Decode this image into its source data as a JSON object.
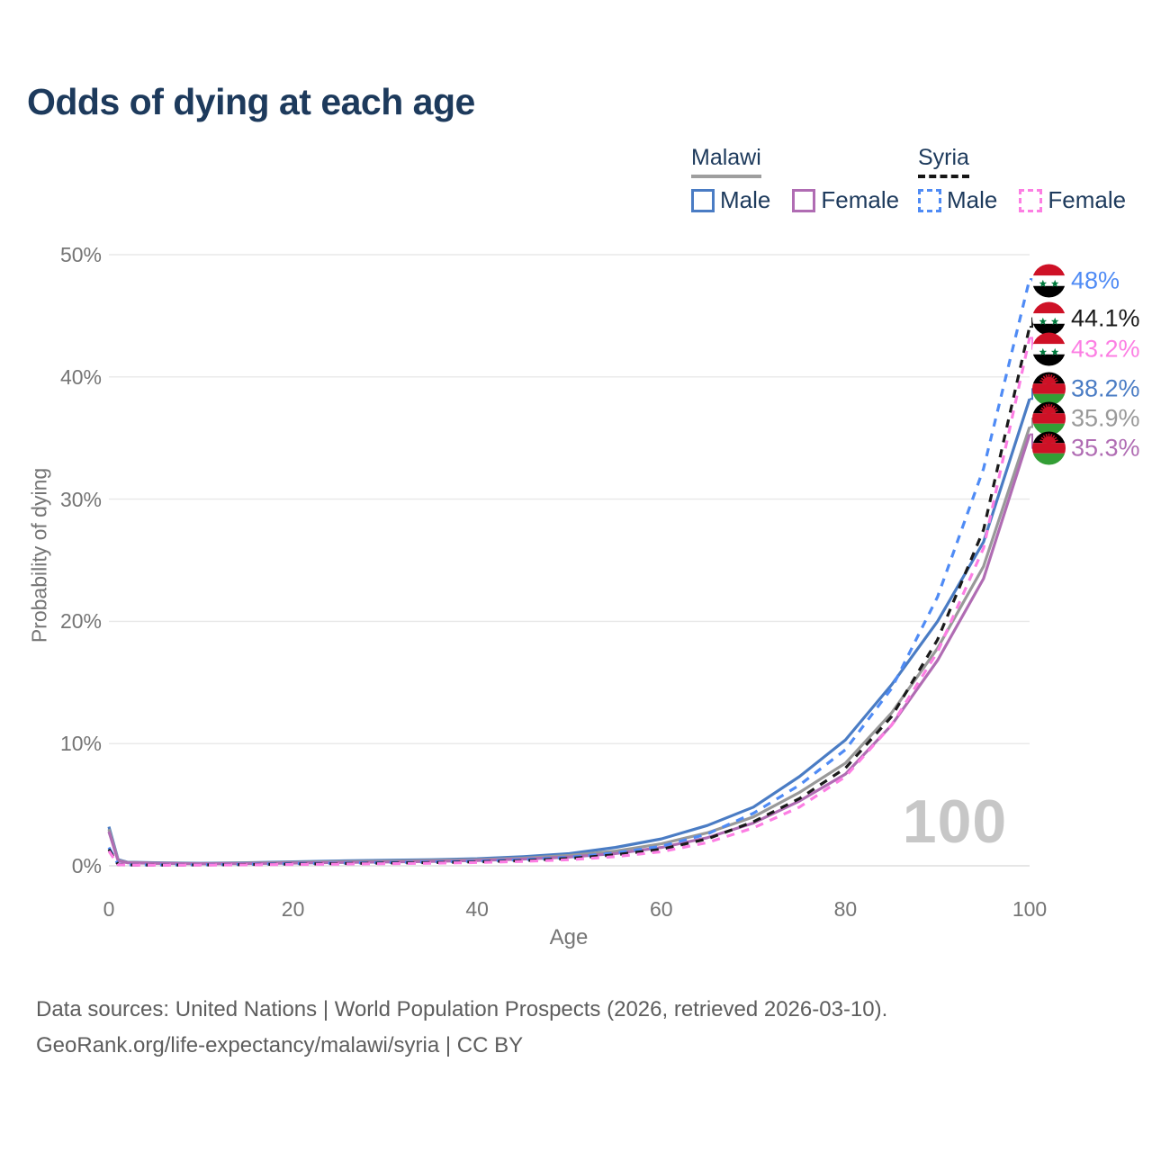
{
  "title": "Odds of dying at each age",
  "legend": {
    "malawi": {
      "label": "Malawi",
      "male": "Male",
      "female": "Female"
    },
    "syria": {
      "label": "Syria",
      "male": "Male",
      "female": "Female"
    }
  },
  "watermark": "100",
  "footer": {
    "line1": "Data sources: United Nations | World Population Prospects (2026, retrieved 2026-03-10).",
    "line2": "GeoRank.org/life-expectancy/malawi/syria | CC BY"
  },
  "colors": {
    "title_text": "#1d3a5c",
    "legend_text": "#1d3a5c",
    "axis_text": "#757575",
    "grid": "#e8e8e8",
    "baseline": "#dddddd",
    "watermark": "#c7c7c7",
    "malawi_header_underline": "#9e9e9e",
    "syria_header_underline": "#151515",
    "malawi_male": "#4a7cc4",
    "malawi_total": "#999999",
    "malawi_female": "#b06cb3",
    "syria_male": "#4f8bf5",
    "syria_total": "#1a1a1a",
    "syria_female": "#fc7ee3",
    "flag_red": "#ce1126",
    "flag_green_syria": "#007a3d",
    "flag_green_malawi": "#339e35"
  },
  "chart_data": {
    "type": "line",
    "title": "Odds of dying at each age",
    "xlabel": "Age",
    "ylabel": "Probability of dying",
    "xlim": [
      0,
      100
    ],
    "ylim": [
      0,
      50
    ],
    "grid": "horizontal-only",
    "legend_position": "top-right",
    "xticks": {
      "values": [
        0,
        20,
        40,
        60,
        80,
        100
      ],
      "labels": [
        "0",
        "20",
        "40",
        "60",
        "80",
        "100"
      ]
    },
    "yticks": {
      "values": [
        0,
        10,
        20,
        30,
        40,
        50
      ],
      "labels": [
        "0%",
        "10%",
        "20%",
        "30%",
        "40%",
        "50%"
      ]
    },
    "x_ages": [
      0,
      1,
      2,
      5,
      10,
      15,
      20,
      25,
      30,
      35,
      40,
      45,
      50,
      55,
      60,
      65,
      70,
      75,
      80,
      85,
      90,
      95,
      100
    ],
    "series": [
      {
        "name": "Syria Male",
        "country": "Syria",
        "sex": "Male",
        "flag": "syria",
        "color": "#4f8bf5",
        "dash": true,
        "end_label": "48%",
        "label_color": "#4f8bf5",
        "label_y_pct": 47.9,
        "values": [
          1.5,
          0.12,
          0.08,
          0.07,
          0.08,
          0.12,
          0.18,
          0.22,
          0.27,
          0.32,
          0.38,
          0.5,
          0.7,
          1.05,
          1.6,
          2.6,
          4.3,
          6.6,
          9.5,
          14.5,
          22.0,
          32.5,
          48.0
        ]
      },
      {
        "name": "Syria Both sexes",
        "country": "Syria",
        "sex": "Both",
        "flag": "syria",
        "color": "#1a1a1a",
        "dash": true,
        "end_label": "44.1%",
        "label_color": "#1a1a1a",
        "label_y_pct": 44.8,
        "values": [
          1.35,
          0.1,
          0.07,
          0.06,
          0.07,
          0.1,
          0.14,
          0.18,
          0.22,
          0.26,
          0.32,
          0.42,
          0.6,
          0.9,
          1.35,
          2.2,
          3.6,
          5.5,
          8.0,
          12.2,
          18.5,
          27.5,
          44.1
        ]
      },
      {
        "name": "Syria Female",
        "country": "Syria",
        "sex": "Female",
        "flag": "syria",
        "color": "#fc7ee3",
        "dash": true,
        "end_label": "43.2%",
        "label_color": "#fc7ee3",
        "label_y_pct": 42.3,
        "values": [
          1.2,
          0.09,
          0.06,
          0.05,
          0.06,
          0.08,
          0.11,
          0.14,
          0.17,
          0.21,
          0.27,
          0.36,
          0.5,
          0.75,
          1.15,
          1.9,
          3.1,
          4.8,
          7.3,
          11.5,
          17.5,
          26.0,
          43.2
        ]
      },
      {
        "name": "Malawi Male",
        "country": "Malawi",
        "sex": "Male",
        "flag": "malawi",
        "color": "#4a7cc4",
        "dash": false,
        "end_label": "38.2%",
        "label_color": "#4a7cc4",
        "label_y_pct": 39.0,
        "values": [
          3.2,
          0.5,
          0.3,
          0.25,
          0.2,
          0.25,
          0.32,
          0.4,
          0.45,
          0.5,
          0.58,
          0.75,
          1.0,
          1.5,
          2.2,
          3.3,
          4.8,
          7.3,
          10.3,
          14.8,
          20.0,
          26.5,
          38.2
        ]
      },
      {
        "name": "Malawi Both sexes",
        "country": "Malawi",
        "sex": "Both",
        "flag": "malawi",
        "color": "#999999",
        "dash": false,
        "end_label": "35.9%",
        "label_color": "#999999",
        "label_y_pct": 36.6,
        "values": [
          3.0,
          0.45,
          0.28,
          0.22,
          0.18,
          0.22,
          0.28,
          0.34,
          0.38,
          0.43,
          0.5,
          0.63,
          0.85,
          1.2,
          1.8,
          2.7,
          4.0,
          6.0,
          8.4,
          12.5,
          17.8,
          24.5,
          35.9
        ]
      },
      {
        "name": "Malawi Female",
        "country": "Malawi",
        "sex": "Female",
        "flag": "malawi",
        "color": "#b06cb3",
        "dash": false,
        "end_label": "35.3%",
        "label_color": "#b06cb3",
        "label_y_pct": 34.2,
        "values": [
          2.8,
          0.4,
          0.25,
          0.2,
          0.16,
          0.18,
          0.22,
          0.27,
          0.31,
          0.36,
          0.43,
          0.55,
          0.72,
          1.0,
          1.5,
          2.3,
          3.5,
          5.3,
          7.5,
          11.5,
          16.8,
          23.5,
          35.3
        ]
      }
    ]
  }
}
